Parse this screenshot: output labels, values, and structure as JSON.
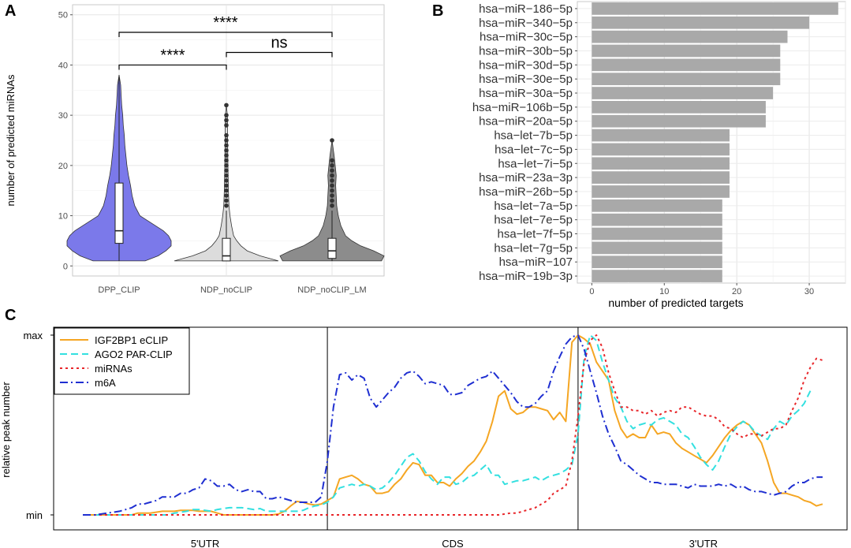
{
  "panel_labels": {
    "a": "A",
    "b": "B",
    "c": "C"
  },
  "colors": {
    "dpp_clip": "#7b79ea",
    "ndp_noclip": "#dcdcdc",
    "ndp_noclip_lm": "#8c8c8c",
    "bar": "#a9a9a9",
    "igf2bp1": "#f5a623",
    "ago2": "#33e0e0",
    "mirnas": "#e8262a",
    "m6a": "#1f2fd1"
  },
  "chart_data": [
    {
      "type": "violin",
      "panel": "A",
      "ylabel": "number of predicted miRNAs",
      "ylim": [
        -2,
        52
      ],
      "yticks": [
        0,
        10,
        20,
        30,
        40,
        50
      ],
      "categories": [
        "DPP_CLIP",
        "NDP_noCLIP",
        "NDP_noCLIP_LM"
      ],
      "groups": [
        {
          "name": "DPP_CLIP",
          "color_key": "dpp_clip",
          "box": {
            "q1": 4.5,
            "median": 7,
            "q3": 16.5,
            "whisker_low": 1,
            "whisker_high": 38
          },
          "outliers": [],
          "density": [
            [
              1,
              0.5
            ],
            [
              2,
              0.75
            ],
            [
              3,
              0.9
            ],
            [
              4,
              1.0
            ],
            [
              5,
              1.0
            ],
            [
              6,
              0.95
            ],
            [
              7,
              0.85
            ],
            [
              8,
              0.7
            ],
            [
              9,
              0.55
            ],
            [
              10,
              0.4
            ],
            [
              12,
              0.3
            ],
            [
              14,
              0.25
            ],
            [
              16,
              0.22
            ],
            [
              18,
              0.18
            ],
            [
              20,
              0.15
            ],
            [
              22,
              0.13
            ],
            [
              24,
              0.11
            ],
            [
              26,
              0.1
            ],
            [
              28,
              0.08
            ],
            [
              30,
              0.07
            ],
            [
              32,
              0.05
            ],
            [
              34,
              0.04
            ],
            [
              36,
              0.03
            ],
            [
              38,
              0.0
            ]
          ]
        },
        {
          "name": "NDP_noCLIP",
          "color_key": "ndp_noclip",
          "box": {
            "q1": 1,
            "median": 2,
            "q3": 5.5,
            "whisker_low": 1,
            "whisker_high": 11
          },
          "outliers": [
            12,
            13,
            14,
            15,
            16,
            17,
            18,
            19,
            20,
            21,
            22,
            23,
            24,
            25,
            26,
            28,
            29,
            30,
            32
          ],
          "density": [
            [
              1,
              1.0
            ],
            [
              2,
              0.65
            ],
            [
              3,
              0.4
            ],
            [
              4,
              0.28
            ],
            [
              5,
              0.2
            ],
            [
              6,
              0.14
            ],
            [
              8,
              0.1
            ],
            [
              10,
              0.07
            ],
            [
              12,
              0.05
            ],
            [
              15,
              0.04
            ],
            [
              20,
              0.03
            ],
            [
              25,
              0.025
            ],
            [
              30,
              0.02
            ],
            [
              32,
              0.0
            ]
          ]
        },
        {
          "name": "NDP_noCLIP_LM",
          "color_key": "ndp_noclip_lm",
          "box": {
            "q1": 1.5,
            "median": 3,
            "q3": 5.5,
            "whisker_low": 1,
            "whisker_high": 11
          },
          "outliers": [
            12,
            13,
            14,
            15,
            16,
            17,
            18,
            19,
            20,
            21,
            25
          ],
          "density": [
            [
              1,
              0.95
            ],
            [
              2,
              1.0
            ],
            [
              3,
              0.8
            ],
            [
              4,
              0.55
            ],
            [
              5,
              0.38
            ],
            [
              6,
              0.26
            ],
            [
              8,
              0.17
            ],
            [
              10,
              0.12
            ],
            [
              12,
              0.09
            ],
            [
              14,
              0.08
            ],
            [
              16,
              0.07
            ],
            [
              18,
              0.08
            ],
            [
              20,
              0.06
            ],
            [
              22,
              0.04
            ],
            [
              25,
              0.0
            ]
          ]
        }
      ],
      "annotations": [
        {
          "from": "DPP_CLIP",
          "to": "NDP_noCLIP_LM",
          "y": 46.5,
          "label": "****"
        },
        {
          "from": "DPP_CLIP",
          "to": "NDP_noCLIP",
          "y": 40,
          "label": "****"
        },
        {
          "from": "NDP_noCLIP",
          "to": "NDP_noCLIP_LM",
          "y": 42.5,
          "label": "ns"
        }
      ]
    },
    {
      "type": "bar",
      "orientation": "horizontal",
      "panel": "B",
      "xlabel": "number of predicted targets",
      "xlim": [
        -2,
        35
      ],
      "xticks": [
        0,
        10,
        20,
        30
      ],
      "categories": [
        "hsa−miR−186−5p",
        "hsa−miR−340−5p",
        "hsa−miR−30c−5p",
        "hsa−miR−30b−5p",
        "hsa−miR−30d−5p",
        "hsa−miR−30e−5p",
        "hsa−miR−30a−5p",
        "hsa−miR−106b−5p",
        "hsa−miR−20a−5p",
        "hsa−let−7b−5p",
        "hsa−let−7c−5p",
        "hsa−let−7i−5p",
        "hsa−miR−23a−3p",
        "hsa−miR−26b−5p",
        "hsa−let−7a−5p",
        "hsa−let−7e−5p",
        "hsa−let−7f−5p",
        "hsa−let−7g−5p",
        "hsa−miR−107",
        "hsa−miR−19b−3p"
      ],
      "values": [
        34,
        30,
        27,
        26,
        26,
        26,
        25,
        24,
        24,
        19,
        19,
        19,
        19,
        19,
        18,
        18,
        18,
        18,
        18,
        18
      ]
    },
    {
      "type": "line",
      "panel": "C",
      "ylabel": "relative peak number",
      "yticks": [
        "min",
        "max"
      ],
      "regions": [
        "5'UTR",
        "CDS",
        "3'UTR"
      ],
      "region_boundaries": [
        0,
        40,
        81,
        122
      ],
      "legend_position": "top-left",
      "series": [
        {
          "name": "IGF2BP1 eCLIP",
          "color_key": "igf2bp1",
          "dash": "solid",
          "values": [
            0,
            0,
            0,
            0,
            0,
            0,
            0,
            0,
            0,
            0.01,
            0.01,
            0.01,
            0.015,
            0.02,
            0.02,
            0.02,
            0.025,
            0.025,
            0.025,
            0.02,
            0.02,
            0.02,
            0.01,
            0,
            0,
            0,
            0,
            0,
            0,
            0,
            0,
            0,
            0.005,
            0.02,
            0.05,
            0.075,
            0.07,
            0.06,
            0.055,
            0.06,
            0.08,
            0.1,
            0.2,
            0.21,
            0.22,
            0.2,
            0.17,
            0.16,
            0.12,
            0.12,
            0.13,
            0.17,
            0.2,
            0.25,
            0.29,
            0.28,
            0.22,
            0.22,
            0.18,
            0.18,
            0.16,
            0.2,
            0.23,
            0.27,
            0.3,
            0.35,
            0.41,
            0.52,
            0.66,
            0.69,
            0.59,
            0.56,
            0.57,
            0.6,
            0.6,
            0.59,
            0.58,
            0.53,
            0.57,
            0.52,
            0.96,
            1.0,
            0.98,
            0.95,
            0.85,
            0.8,
            0.75,
            0.58,
            0.48,
            0.43,
            0.45,
            0.43,
            0.43,
            0.5,
            0.45,
            0.46,
            0.45,
            0.4,
            0.37,
            0.35,
            0.33,
            0.31,
            0.29,
            0.33,
            0.38,
            0.43,
            0.47,
            0.5,
            0.52,
            0.5,
            0.45,
            0.4,
            0.3,
            0.18,
            0.12,
            0.12,
            0.11,
            0.1,
            0.08,
            0.07,
            0.05,
            0.06
          ]
        },
        {
          "name": "AGO2 PAR-CLIP",
          "color_key": "ago2",
          "dash": "dashed",
          "values": [
            0,
            0,
            0,
            0,
            0,
            0,
            0,
            0,
            0,
            0,
            0,
            0,
            0,
            0,
            0,
            0.01,
            0.015,
            0.02,
            0.03,
            0.03,
            0.025,
            0.02,
            0.03,
            0.035,
            0.04,
            0.04,
            0.04,
            0.035,
            0.03,
            0.035,
            0.02,
            0.02,
            0.02,
            0.02,
            0.02,
            0.02,
            0.025,
            0.04,
            0.05,
            0.055,
            0.07,
            0.1,
            0.15,
            0.16,
            0.17,
            0.16,
            0.17,
            0.16,
            0.14,
            0.15,
            0.18,
            0.22,
            0.27,
            0.32,
            0.34,
            0.3,
            0.24,
            0.2,
            0.17,
            0.21,
            0.21,
            0.17,
            0.18,
            0.21,
            0.22,
            0.25,
            0.28,
            0.22,
            0.22,
            0.17,
            0.18,
            0.19,
            0.19,
            0.2,
            0.21,
            0.19,
            0.21,
            0.22,
            0.23,
            0.25,
            0.28,
            0.45,
            0.88,
            1.0,
            0.97,
            0.85,
            0.75,
            0.65,
            0.6,
            0.52,
            0.48,
            0.5,
            0.51,
            0.5,
            0.53,
            0.54,
            0.52,
            0.5,
            0.45,
            0.43,
            0.38,
            0.32,
            0.28,
            0.25,
            0.3,
            0.38,
            0.45,
            0.49,
            0.52,
            0.5,
            0.46,
            0.44,
            0.42,
            0.48,
            0.52,
            0.5,
            0.55,
            0.58,
            0.62,
            0.69
          ]
        },
        {
          "name": "miRNAs",
          "color_key": "mirnas",
          "dash": "dotted",
          "values": [
            0,
            0,
            0,
            0,
            0,
            0,
            0,
            0,
            0,
            0,
            0,
            0,
            0,
            0,
            0,
            0,
            0,
            0,
            0,
            0,
            0,
            0,
            0,
            0,
            0,
            0,
            0,
            0,
            0,
            0,
            0,
            0,
            0,
            0,
            0,
            0,
            0,
            0,
            0,
            0,
            0,
            0,
            0,
            0,
            0,
            0,
            0,
            0,
            0,
            0,
            0,
            0,
            0,
            0,
            0,
            0,
            0,
            0,
            0,
            0,
            0,
            0,
            0,
            0,
            0,
            0,
            0,
            0,
            0,
            0.005,
            0.01,
            0.01,
            0.02,
            0.03,
            0.04,
            0.06,
            0.08,
            0.12,
            0.14,
            0.16,
            0.3,
            0.55,
            0.85,
            0.97,
            1.0,
            0.93,
            0.79,
            0.69,
            0.6,
            0.6,
            0.58,
            0.58,
            0.56,
            0.58,
            0.55,
            0.57,
            0.58,
            0.57,
            0.6,
            0.6,
            0.58,
            0.56,
            0.55,
            0.55,
            0.53,
            0.49,
            0.48,
            0.45,
            0.43,
            0.45,
            0.45,
            0.44,
            0.46,
            0.48,
            0.48,
            0.5,
            0.58,
            0.65,
            0.75,
            0.82,
            0.87,
            0.86
          ]
        },
        {
          "name": "m6A",
          "color_key": "m6a",
          "dash": "dashdot",
          "values": [
            0,
            0,
            0,
            0.005,
            0.01,
            0.015,
            0.02,
            0.03,
            0.04,
            0.06,
            0.06,
            0.07,
            0.08,
            0.1,
            0.1,
            0.1,
            0.12,
            0.12,
            0.14,
            0.15,
            0.2,
            0.19,
            0.16,
            0.16,
            0.17,
            0.14,
            0.13,
            0.14,
            0.13,
            0.13,
            0.09,
            0.09,
            0.1,
            0.09,
            0.08,
            0.07,
            0.07,
            0.07,
            0.07,
            0.1,
            0.3,
            0.6,
            0.78,
            0.79,
            0.75,
            0.78,
            0.76,
            0.65,
            0.6,
            0.64,
            0.68,
            0.71,
            0.76,
            0.79,
            0.8,
            0.77,
            0.73,
            0.74,
            0.73,
            0.72,
            0.67,
            0.67,
            0.68,
            0.72,
            0.74,
            0.76,
            0.77,
            0.8,
            0.76,
            0.72,
            0.68,
            0.63,
            0.6,
            0.6,
            0.62,
            0.66,
            0.69,
            0.8,
            0.88,
            0.95,
            0.99,
            1.0,
            0.92,
            0.8,
            0.68,
            0.55,
            0.45,
            0.38,
            0.3,
            0.28,
            0.25,
            0.22,
            0.2,
            0.18,
            0.18,
            0.17,
            0.17,
            0.17,
            0.16,
            0.15,
            0.17,
            0.16,
            0.16,
            0.16,
            0.17,
            0.16,
            0.17,
            0.15,
            0.16,
            0.14,
            0.13,
            0.13,
            0.12,
            0.11,
            0.12,
            0.13,
            0.16,
            0.18,
            0.18,
            0.2,
            0.21,
            0.21
          ]
        }
      ]
    }
  ]
}
